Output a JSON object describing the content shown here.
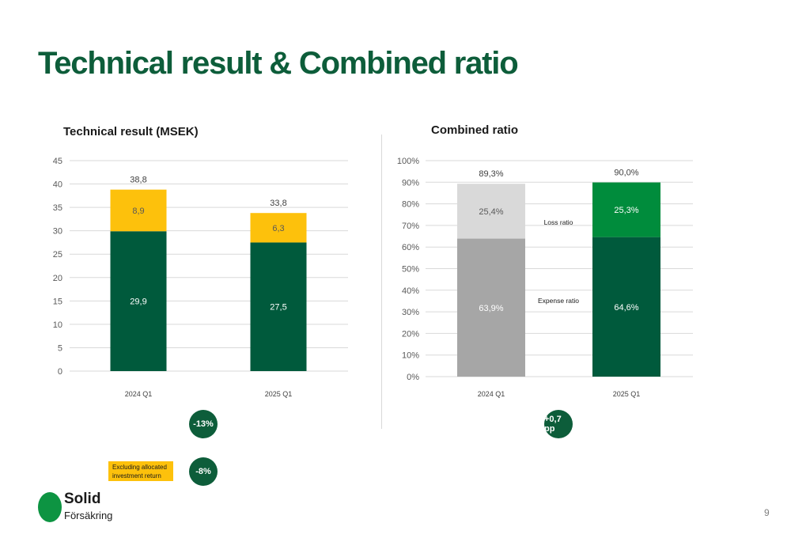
{
  "title": "Technical result & Combined ratio",
  "charts": {
    "technical": {
      "title": "Technical result (MSEK)"
    },
    "combined": {
      "title": "Combined ratio"
    }
  },
  "chart_data": [
    {
      "type": "bar",
      "stacked": true,
      "title": "Technical result (MSEK)",
      "categories": [
        "2024 Q1",
        "2025 Q1"
      ],
      "series": [
        {
          "values": [
            29.9,
            27.5
          ],
          "labels": [
            "29,9",
            "27,5"
          ],
          "colors": [
            "#005a3c",
            "#005a3c"
          ]
        },
        {
          "values": [
            8.9,
            6.3
          ],
          "labels": [
            "8,9",
            "6,3"
          ],
          "colors": [
            "#fdc10c",
            "#fdc10c"
          ]
        }
      ],
      "totals": [
        "38,8",
        "33,8"
      ],
      "yticks": [
        "0",
        "5",
        "10",
        "15",
        "20",
        "25",
        "30",
        "35",
        "40",
        "45"
      ],
      "ylim": [
        0,
        45
      ],
      "grid": true,
      "legend": "none"
    },
    {
      "type": "bar",
      "stacked": true,
      "title": "Combined ratio",
      "categories": [
        "2024 Q1",
        "2025 Q1"
      ],
      "series": [
        {
          "name": "Expense ratio",
          "values": [
            63.9,
            64.6
          ],
          "labels": [
            "63,9%",
            "64,6%"
          ],
          "colors": [
            "#a6a6a6",
            "#005a3c"
          ]
        },
        {
          "name": "Loss ratio",
          "values": [
            25.4,
            25.3
          ],
          "labels": [
            "25,4%",
            "25,3%"
          ],
          "colors": [
            "#d9d9d9",
            "#008c3c"
          ]
        }
      ],
      "totals": [
        "89,3%",
        "90,0%"
      ],
      "yticks": [
        "0%",
        "10%",
        "20%",
        "30%",
        "40%",
        "50%",
        "60%",
        "70%",
        "80%",
        "90%",
        "100%"
      ],
      "ylim": [
        0,
        100
      ],
      "grid": true,
      "legend": "inline"
    }
  ],
  "badges": {
    "technical_change": "-13%",
    "technical_excl": "-8%",
    "combined_change": "+0,7 pp"
  },
  "note": {
    "line1": "Excluding allocated",
    "line2": "investment return"
  },
  "logo": {
    "name": "Solid",
    "sub": "Försäkring"
  },
  "page_number": "9",
  "colors": {
    "brand_green": "#0d5d3a",
    "accent_yellow": "#fdc10c",
    "logo_green": "#0d9442"
  }
}
